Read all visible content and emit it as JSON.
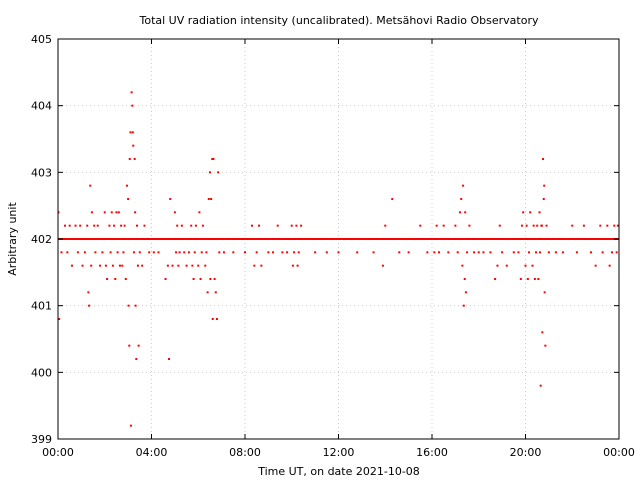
{
  "chart_data": {
    "type": "scatter",
    "title": "Total UV radiation intensity (uncalibrated). Metsähovi Radio Observatory",
    "xlabel": "Time UT, on date 2021-10-08",
    "ylabel": "Arbitrary unit",
    "x_unit": "hours UT",
    "xlim": [
      0,
      24
    ],
    "ylim": [
      399,
      405
    ],
    "x_ticks": [
      {
        "value": 0,
        "label": "00:00"
      },
      {
        "value": 4,
        "label": "04:00"
      },
      {
        "value": 8,
        "label": "08:00"
      },
      {
        "value": 12,
        "label": "12:00"
      },
      {
        "value": 16,
        "label": "16:00"
      },
      {
        "value": 20,
        "label": "20:00"
      },
      {
        "value": 24,
        "label": "00:00"
      }
    ],
    "y_ticks": [
      {
        "value": 399,
        "label": "399"
      },
      {
        "value": 400,
        "label": "400"
      },
      {
        "value": 401,
        "label": "401"
      },
      {
        "value": 402,
        "label": "402"
      },
      {
        "value": 403,
        "label": "403"
      },
      {
        "value": 404,
        "label": "404"
      },
      {
        "value": 405,
        "label": "405"
      }
    ],
    "grid": true,
    "marker_color": "#ff0000",
    "baseline": {
      "y": 402.0,
      "x_range": [
        0,
        24
      ]
    },
    "series": [
      {
        "points": [
          [
            0.02,
            402.4
          ],
          [
            0.05,
            400.8
          ],
          [
            0.15,
            401.8
          ],
          [
            0.3,
            402.2
          ],
          [
            0.4,
            401.8
          ],
          [
            0.5,
            402.2
          ],
          [
            0.6,
            401.6
          ],
          [
            0.75,
            402.2
          ],
          [
            0.85,
            401.8
          ],
          [
            0.95,
            402.2
          ],
          [
            1.05,
            401.6
          ],
          [
            1.15,
            401.8
          ],
          [
            1.25,
            402.2
          ],
          [
            1.3,
            401.2
          ],
          [
            1.33,
            401.0
          ],
          [
            1.38,
            402.8
          ],
          [
            1.42,
            401.6
          ],
          [
            1.45,
            402.4
          ],
          [
            1.55,
            402.2
          ],
          [
            1.6,
            401.8
          ],
          [
            1.7,
            402.2
          ],
          [
            1.8,
            401.6
          ],
          [
            1.9,
            401.8
          ],
          [
            2.0,
            402.4
          ],
          [
            2.05,
            401.6
          ],
          [
            2.1,
            401.4
          ],
          [
            2.2,
            402.2
          ],
          [
            2.25,
            401.8
          ],
          [
            2.3,
            402.4
          ],
          [
            2.35,
            401.6
          ],
          [
            2.4,
            402.2
          ],
          [
            2.45,
            401.4
          ],
          [
            2.5,
            402.4
          ],
          [
            2.55,
            401.8
          ],
          [
            2.6,
            402.4
          ],
          [
            2.65,
            401.6
          ],
          [
            2.7,
            402.2
          ],
          [
            2.75,
            401.6
          ],
          [
            2.8,
            401.8
          ],
          [
            2.85,
            402.2
          ],
          [
            2.9,
            401.4
          ],
          [
            2.95,
            402.8
          ],
          [
            3.0,
            402.6
          ],
          [
            3.02,
            401.0
          ],
          [
            3.05,
            400.4
          ],
          [
            3.07,
            403.2
          ],
          [
            3.1,
            403.6
          ],
          [
            3.12,
            399.2
          ],
          [
            3.15,
            404.2
          ],
          [
            3.18,
            404.0
          ],
          [
            3.2,
            403.6
          ],
          [
            3.22,
            403.4
          ],
          [
            3.25,
            401.8
          ],
          [
            3.28,
            403.2
          ],
          [
            3.3,
            402.4
          ],
          [
            3.32,
            401.0
          ],
          [
            3.35,
            400.2
          ],
          [
            3.38,
            402.2
          ],
          [
            3.42,
            401.6
          ],
          [
            3.45,
            400.4
          ],
          [
            3.5,
            401.8
          ],
          [
            3.6,
            401.6
          ],
          [
            3.7,
            402.2
          ],
          [
            3.9,
            401.8
          ],
          [
            4.1,
            401.8
          ],
          [
            4.3,
            401.8
          ],
          [
            4.6,
            401.4
          ],
          [
            4.7,
            401.6
          ],
          [
            4.75,
            400.2
          ],
          [
            4.8,
            402.6
          ],
          [
            4.9,
            401.6
          ],
          [
            5.0,
            402.4
          ],
          [
            5.05,
            401.8
          ],
          [
            5.1,
            402.2
          ],
          [
            5.15,
            401.6
          ],
          [
            5.2,
            401.8
          ],
          [
            5.3,
            402.2
          ],
          [
            5.4,
            401.8
          ],
          [
            5.5,
            401.6
          ],
          [
            5.6,
            401.8
          ],
          [
            5.7,
            402.2
          ],
          [
            5.75,
            401.6
          ],
          [
            5.8,
            401.4
          ],
          [
            5.85,
            401.8
          ],
          [
            5.9,
            402.2
          ],
          [
            6.0,
            401.6
          ],
          [
            6.05,
            402.4
          ],
          [
            6.1,
            401.4
          ],
          [
            6.15,
            401.8
          ],
          [
            6.2,
            402.2
          ],
          [
            6.3,
            401.6
          ],
          [
            6.35,
            401.8
          ],
          [
            6.4,
            401.2
          ],
          [
            6.45,
            402.6
          ],
          [
            6.5,
            403.0
          ],
          [
            6.52,
            401.4
          ],
          [
            6.55,
            402.6
          ],
          [
            6.6,
            403.2
          ],
          [
            6.62,
            400.8
          ],
          [
            6.65,
            403.2
          ],
          [
            6.7,
            401.4
          ],
          [
            6.75,
            401.2
          ],
          [
            6.8,
            400.8
          ],
          [
            6.85,
            403.0
          ],
          [
            6.9,
            401.8
          ],
          [
            7.1,
            401.8
          ],
          [
            7.5,
            401.8
          ],
          [
            8.0,
            401.8
          ],
          [
            8.3,
            402.2
          ],
          [
            8.4,
            401.6
          ],
          [
            8.5,
            401.8
          ],
          [
            8.6,
            402.2
          ],
          [
            8.7,
            401.6
          ],
          [
            9.0,
            401.8
          ],
          [
            9.2,
            401.8
          ],
          [
            9.4,
            402.2
          ],
          [
            9.6,
            401.8
          ],
          [
            9.8,
            401.8
          ],
          [
            10.0,
            402.2
          ],
          [
            10.05,
            401.6
          ],
          [
            10.1,
            401.8
          ],
          [
            10.2,
            402.2
          ],
          [
            10.25,
            401.6
          ],
          [
            10.3,
            401.8
          ],
          [
            10.4,
            402.2
          ],
          [
            11.0,
            401.8
          ],
          [
            11.5,
            401.8
          ],
          [
            12.0,
            401.8
          ],
          [
            12.8,
            401.8
          ],
          [
            13.5,
            401.8
          ],
          [
            13.9,
            401.6
          ],
          [
            14.0,
            402.2
          ],
          [
            14.3,
            402.6
          ],
          [
            14.6,
            401.8
          ],
          [
            15.0,
            401.8
          ],
          [
            15.5,
            402.2
          ],
          [
            15.8,
            401.8
          ],
          [
            16.1,
            401.8
          ],
          [
            16.2,
            402.2
          ],
          [
            16.3,
            401.8
          ],
          [
            16.5,
            402.2
          ],
          [
            16.7,
            401.8
          ],
          [
            17.0,
            402.2
          ],
          [
            17.1,
            401.8
          ],
          [
            17.2,
            402.4
          ],
          [
            17.25,
            402.6
          ],
          [
            17.3,
            401.6
          ],
          [
            17.33,
            402.8
          ],
          [
            17.36,
            401.0
          ],
          [
            17.4,
            401.4
          ],
          [
            17.42,
            402.4
          ],
          [
            17.45,
            401.2
          ],
          [
            17.5,
            401.8
          ],
          [
            17.6,
            402.2
          ],
          [
            17.8,
            401.8
          ],
          [
            18.0,
            401.8
          ],
          [
            18.2,
            401.8
          ],
          [
            18.5,
            401.8
          ],
          [
            18.7,
            401.4
          ],
          [
            18.8,
            401.6
          ],
          [
            18.9,
            402.2
          ],
          [
            19.0,
            401.8
          ],
          [
            19.2,
            401.6
          ],
          [
            19.5,
            401.8
          ],
          [
            19.7,
            401.8
          ],
          [
            19.8,
            401.4
          ],
          [
            19.85,
            402.2
          ],
          [
            19.9,
            402.4
          ],
          [
            20.0,
            401.6
          ],
          [
            20.05,
            402.2
          ],
          [
            20.1,
            401.4
          ],
          [
            20.15,
            401.8
          ],
          [
            20.2,
            402.4
          ],
          [
            20.3,
            401.6
          ],
          [
            20.35,
            402.2
          ],
          [
            20.4,
            401.4
          ],
          [
            20.45,
            401.8
          ],
          [
            20.5,
            402.2
          ],
          [
            20.55,
            401.4
          ],
          [
            20.6,
            402.4
          ],
          [
            20.62,
            401.8
          ],
          [
            20.65,
            399.8
          ],
          [
            20.68,
            402.2
          ],
          [
            20.7,
            402.2
          ],
          [
            20.72,
            400.6
          ],
          [
            20.75,
            403.2
          ],
          [
            20.78,
            402.6
          ],
          [
            20.8,
            402.8
          ],
          [
            20.82,
            401.2
          ],
          [
            20.85,
            400.4
          ],
          [
            20.9,
            402.2
          ],
          [
            21.0,
            401.8
          ],
          [
            21.3,
            401.8
          ],
          [
            21.6,
            401.8
          ],
          [
            22.0,
            402.2
          ],
          [
            22.2,
            401.8
          ],
          [
            22.5,
            402.2
          ],
          [
            22.8,
            401.8
          ],
          [
            23.0,
            401.6
          ],
          [
            23.2,
            402.2
          ],
          [
            23.3,
            401.8
          ],
          [
            23.5,
            402.2
          ],
          [
            23.6,
            401.6
          ],
          [
            23.7,
            401.8
          ],
          [
            23.8,
            402.2
          ],
          [
            23.9,
            401.8
          ],
          [
            23.95,
            402.2
          ]
        ]
      }
    ]
  }
}
